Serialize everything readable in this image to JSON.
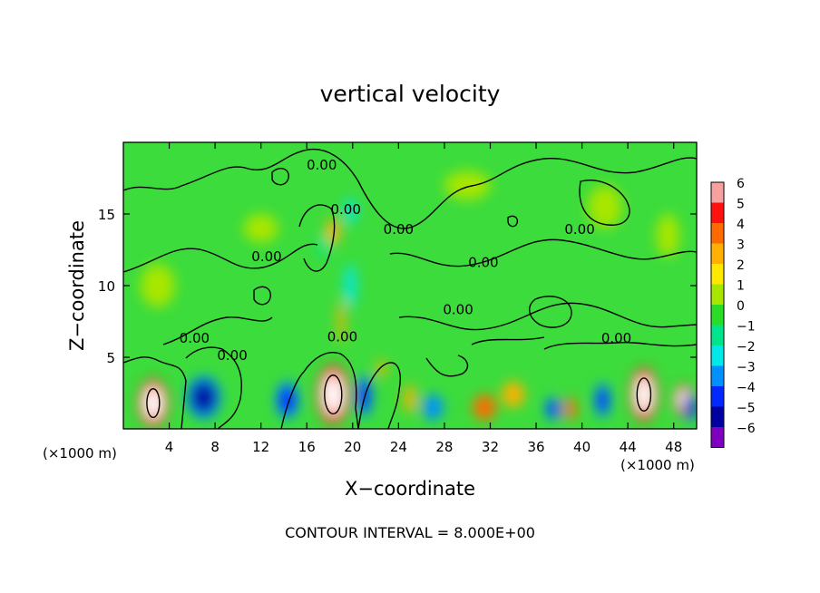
{
  "chart_data": {
    "type": "heatmap",
    "title": "vertical velocity",
    "xlabel": "X−coordinate",
    "ylabel": "Z−coordinate",
    "x_unit_left": "(×1000 m)",
    "x_unit_right": "(×1000 m)",
    "footer": "CONTOUR INTERVAL = 8.000E+00",
    "xlim": [
      0,
      50
    ],
    "ylim": [
      0,
      20
    ],
    "x_ticks": [
      4,
      8,
      12,
      16,
      20,
      24,
      28,
      32,
      36,
      40,
      44,
      48
    ],
    "x_tick_labels": [
      "4",
      "8",
      "12",
      "16",
      "20",
      "24",
      "28",
      "32",
      "36",
      "40",
      "44",
      "48"
    ],
    "y_ticks": [
      5,
      10,
      15
    ],
    "y_tick_labels": [
      "5",
      "10",
      "15"
    ],
    "colorbar": {
      "min": -6,
      "max": 6,
      "ticks": [
        6,
        5,
        4,
        3,
        2,
        1,
        0,
        -1,
        -2,
        -3,
        -4,
        -5,
        -6
      ],
      "tick_labels": [
        "6",
        "5",
        "4",
        "3",
        "2",
        "1",
        "0",
        "−1",
        "−2",
        "−3",
        "−4",
        "−5",
        "−6"
      ],
      "colors": [
        "#f7a0a0",
        "#ff1010",
        "#ff6a00",
        "#ffb000",
        "#ffe800",
        "#a8e600",
        "#28dc28",
        "#00e48c",
        "#00e8e8",
        "#0090ff",
        "#0028ff",
        "#0000a0",
        "#8000c0"
      ]
    },
    "contour_labels": [
      {
        "x": 17.3,
        "y": 18.1,
        "text": "0.00"
      },
      {
        "x": 19.4,
        "y": 15.0,
        "text": "0.00"
      },
      {
        "x": 24.0,
        "y": 13.6,
        "text": "0.00"
      },
      {
        "x": 39.8,
        "y": 13.6,
        "text": "0.00"
      },
      {
        "x": 12.5,
        "y": 11.7,
        "text": "0.00"
      },
      {
        "x": 31.4,
        "y": 11.3,
        "text": "0.00"
      },
      {
        "x": 29.2,
        "y": 8.0,
        "text": "0.00"
      },
      {
        "x": 6.2,
        "y": 6.0,
        "text": "0.00"
      },
      {
        "x": 19.1,
        "y": 6.1,
        "text": "0.00"
      },
      {
        "x": 43.0,
        "y": 6.0,
        "text": "0.00"
      },
      {
        "x": 9.5,
        "y": 4.8,
        "text": "0.00"
      }
    ],
    "features": [
      {
        "x": 2.6,
        "y": 1.8,
        "w": 2.6,
        "h": 3.3,
        "v": 6
      },
      {
        "x": 18.3,
        "y": 2.4,
        "w": 2.8,
        "h": 4.1,
        "v": 6
      },
      {
        "x": 45.4,
        "y": 2.4,
        "w": 2.4,
        "h": 3.7,
        "v": 6
      },
      {
        "x": 48.9,
        "y": 2.0,
        "w": 1.8,
        "h": 2.2,
        "v": 5
      },
      {
        "x": 7.0,
        "y": 2.2,
        "w": 3.0,
        "h": 3.0,
        "v": -5
      },
      {
        "x": 14.3,
        "y": 2.0,
        "w": 2.0,
        "h": 2.6,
        "v": -4
      },
      {
        "x": 21.0,
        "y": 2.3,
        "w": 1.4,
        "h": 3.0,
        "v": -4
      },
      {
        "x": 25.0,
        "y": 2.1,
        "w": 1.0,
        "h": 2.0,
        "v": 3
      },
      {
        "x": 27.0,
        "y": 1.5,
        "w": 1.8,
        "h": 1.8,
        "v": -3
      },
      {
        "x": 31.5,
        "y": 1.5,
        "w": 2.0,
        "h": 1.8,
        "v": 4
      },
      {
        "x": 34.0,
        "y": 2.4,
        "w": 2.0,
        "h": 1.8,
        "v": 3
      },
      {
        "x": 37.5,
        "y": 1.4,
        "w": 1.4,
        "h": 1.6,
        "v": -4
      },
      {
        "x": 39.0,
        "y": 1.4,
        "w": 1.0,
        "h": 1.6,
        "v": 4
      },
      {
        "x": 41.8,
        "y": 2.0,
        "w": 1.4,
        "h": 2.4,
        "v": -4
      },
      {
        "x": 49.5,
        "y": 1.5,
        "w": 1.4,
        "h": 2.0,
        "v": -5
      },
      {
        "x": 22.5,
        "y": 4.2,
        "w": 0.8,
        "h": 1.2,
        "v": 3
      },
      {
        "x": 19.0,
        "y": 7.5,
        "w": 0.6,
        "h": 3.0,
        "v": 3
      },
      {
        "x": 19.8,
        "y": 10.0,
        "w": 1.0,
        "h": 3.0,
        "v": -2
      },
      {
        "x": 18.3,
        "y": 13.8,
        "w": 1.2,
        "h": 1.8,
        "v": 3
      },
      {
        "x": 19.8,
        "y": 15.2,
        "w": 1.0,
        "h": 1.8,
        "v": -2
      },
      {
        "x": 17.5,
        "y": 12.8,
        "w": 1.0,
        "h": 1.6,
        "v": -1
      },
      {
        "x": 12.0,
        "y": 14.0,
        "w": 3.0,
        "h": 2.0,
        "v": 1
      },
      {
        "x": 42.0,
        "y": 15.5,
        "w": 3.0,
        "h": 3.0,
        "v": 1
      },
      {
        "x": 47.5,
        "y": 13.5,
        "w": 2.0,
        "h": 3.0,
        "v": 1
      },
      {
        "x": 3.0,
        "y": 10.0,
        "w": 3.0,
        "h": 3.0,
        "v": 1
      },
      {
        "x": 30.0,
        "y": 17.0,
        "w": 4.0,
        "h": 2.0,
        "v": 1
      }
    ]
  }
}
